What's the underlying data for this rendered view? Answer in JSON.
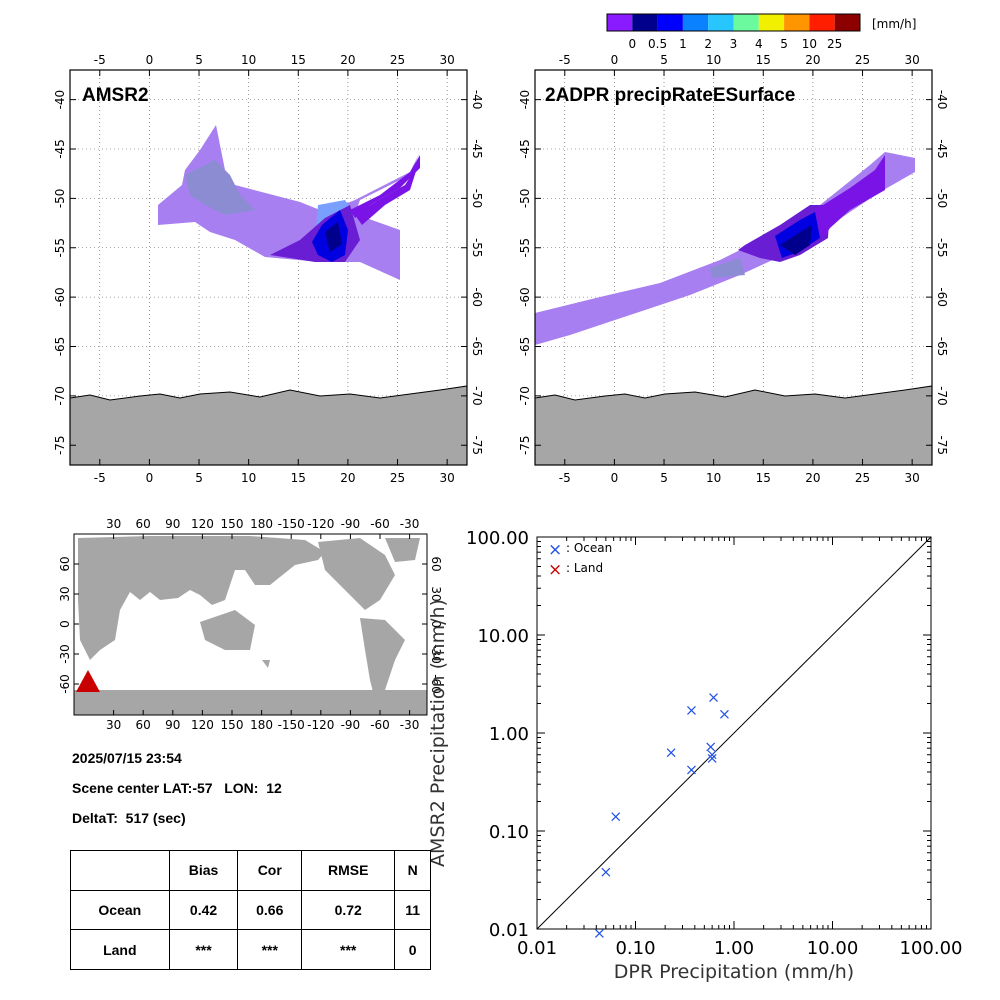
{
  "colorbar": {
    "unit": "[mm/h]",
    "ticks": [
      "0",
      "0.5",
      "1",
      "2",
      "3",
      "4",
      "5",
      "10",
      "25"
    ],
    "colors": [
      "#8a1aff",
      "#00008c",
      "#0000ff",
      "#0a82ff",
      "#27c6ff",
      "#6cfa9e",
      "#f0f000",
      "#ff9600",
      "#ff1e00",
      "#8c0000"
    ]
  },
  "maps": [
    {
      "title": "AMSR2"
    },
    {
      "title": "2ADPR precipRateESurface"
    }
  ],
  "map_axes": {
    "lon_ticks": [
      "-5",
      "0",
      "5",
      "10",
      "15",
      "20",
      "25",
      "30"
    ],
    "lat_ticks": [
      "-40",
      "-45",
      "-50",
      "-55",
      "-60",
      "-65",
      "-70",
      "-75"
    ]
  },
  "world_map": {
    "lon_ticks": [
      "30",
      "60",
      "90",
      "120",
      "150",
      "180",
      "-150",
      "-120",
      "-90",
      "-60",
      "-30"
    ],
    "lat_ticks": [
      "60",
      "30",
      "0",
      "-30",
      "-60"
    ],
    "marker_color": "#c80000"
  },
  "info": {
    "datetime": "2025/07/15 23:54",
    "center": "Scene center LAT:-57   LON:  12",
    "delta": "DeltaT:  517 (sec)"
  },
  "stats_table": {
    "headers": [
      "",
      "Bias",
      "Cor",
      "RMSE",
      "N"
    ],
    "rows": [
      [
        "Ocean",
        "0.42",
        "0.66",
        "0.72",
        "11"
      ],
      [
        "Land",
        "***",
        "***",
        "***",
        "0"
      ]
    ]
  },
  "chart_data": {
    "type": "scatter",
    "xlabel": "DPR Precipitation (mm/h)",
    "ylabel": "AMSR2 Precipitation (mm/h)",
    "scale": "log",
    "xlim": [
      0.01,
      100
    ],
    "ylim": [
      0.01,
      100
    ],
    "tick_labels": [
      "0.01",
      "0.10",
      "1.00",
      "10.00",
      "100.00"
    ],
    "one_to_one_line": true,
    "legend_position": "top-left",
    "series": [
      {
        "name": ": Ocean",
        "color": "#1e50e6",
        "x": [
          0.043,
          0.05,
          0.063,
          0.23,
          0.37,
          0.37,
          0.58,
          0.6,
          0.6,
          0.62,
          0.8
        ],
        "y": [
          0.009,
          0.038,
          0.14,
          0.63,
          0.42,
          1.7,
          0.72,
          0.55,
          0.6,
          2.3,
          1.55
        ]
      },
      {
        "name": ": Land",
        "color": "#c80000",
        "x": [],
        "y": []
      }
    ]
  }
}
